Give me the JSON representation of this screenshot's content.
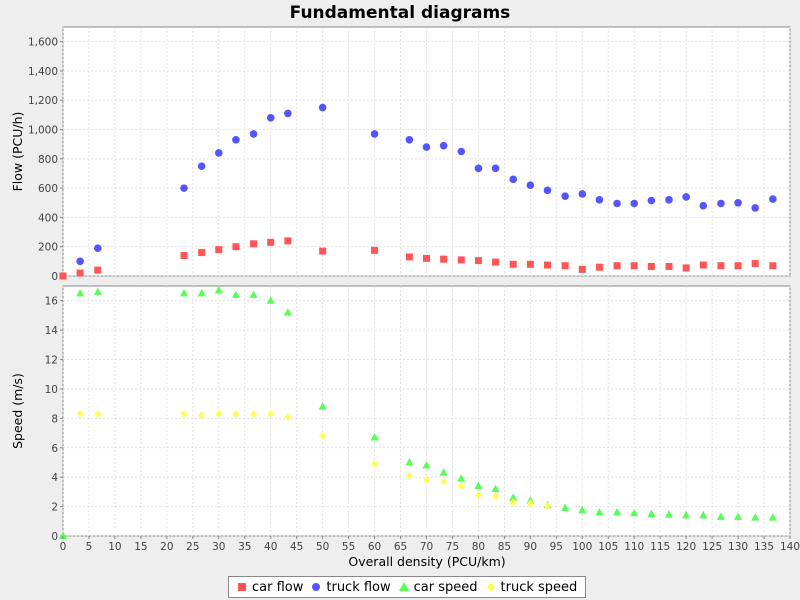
{
  "chart_data": {
    "title": "Fundamental diagrams",
    "xlabel": "Overall density (PCU/km)",
    "xlim": [
      0,
      140
    ],
    "x_ticks": [
      0,
      5,
      10,
      15,
      20,
      25,
      30,
      35,
      40,
      45,
      50,
      55,
      60,
      65,
      70,
      75,
      80,
      85,
      90,
      95,
      100,
      105,
      110,
      115,
      120,
      125,
      130,
      135,
      140
    ],
    "grid": true,
    "legend_position": "bottom",
    "subplots": [
      {
        "type": "scatter",
        "ylabel": "Flow (PCU/h)",
        "ylim": [
          0,
          1700
        ],
        "y_ticks": [
          0,
          200,
          400,
          600,
          800,
          1000,
          1200,
          1400,
          1600
        ],
        "y_tick_labels": [
          "0",
          "200",
          "400",
          "600",
          "800",
          "1,000",
          "1,200",
          "1,400",
          "1,600"
        ],
        "series": [
          {
            "name": "car flow",
            "marker": "square",
            "color": "#ff5555",
            "points": [
              [
                0,
                0
              ],
              [
                3.3,
                20
              ],
              [
                6.7,
                40
              ],
              [
                23.3,
                140
              ],
              [
                26.7,
                160
              ],
              [
                30,
                180
              ],
              [
                33.3,
                200
              ],
              [
                36.7,
                220
              ],
              [
                40,
                230
              ],
              [
                43.3,
                240
              ],
              [
                50,
                170
              ],
              [
                60,
                175
              ],
              [
                66.7,
                130
              ],
              [
                70,
                120
              ],
              [
                73.3,
                115
              ],
              [
                76.7,
                110
              ],
              [
                80,
                105
              ],
              [
                83.3,
                95
              ],
              [
                86.7,
                80
              ],
              [
                90,
                80
              ],
              [
                93.3,
                75
              ],
              [
                96.7,
                70
              ],
              [
                100,
                45
              ],
              [
                103.3,
                60
              ],
              [
                106.7,
                70
              ],
              [
                110,
                70
              ],
              [
                113.3,
                65
              ],
              [
                116.7,
                65
              ],
              [
                120,
                55
              ],
              [
                123.3,
                75
              ],
              [
                126.7,
                70
              ],
              [
                130,
                70
              ],
              [
                133.3,
                85
              ],
              [
                136.7,
                70
              ]
            ]
          },
          {
            "name": "truck flow",
            "marker": "circle",
            "color": "#5555ff",
            "points": [
              [
                3.3,
                100
              ],
              [
                6.7,
                190
              ],
              [
                23.3,
                600
              ],
              [
                26.7,
                750
              ],
              [
                30,
                840
              ],
              [
                33.3,
                930
              ],
              [
                36.7,
                970
              ],
              [
                40,
                1080
              ],
              [
                43.3,
                1110
              ],
              [
                50,
                1150
              ],
              [
                60,
                970
              ],
              [
                66.7,
                930
              ],
              [
                70,
                880
              ],
              [
                73.3,
                890
              ],
              [
                76.7,
                850
              ],
              [
                80,
                735
              ],
              [
                83.3,
                735
              ],
              [
                86.7,
                660
              ],
              [
                90,
                620
              ],
              [
                93.3,
                585
              ],
              [
                96.7,
                545
              ],
              [
                100,
                560
              ],
              [
                103.3,
                520
              ],
              [
                106.7,
                495
              ],
              [
                110,
                495
              ],
              [
                113.3,
                515
              ],
              [
                116.7,
                520
              ],
              [
                120,
                540
              ],
              [
                123.3,
                480
              ],
              [
                126.7,
                495
              ],
              [
                130,
                500
              ],
              [
                133.3,
                465
              ],
              [
                136.7,
                525
              ]
            ]
          }
        ]
      },
      {
        "type": "scatter",
        "ylabel": "Speed (m/s)",
        "ylim": [
          0,
          17
        ],
        "y_ticks": [
          0,
          2,
          4,
          6,
          8,
          10,
          12,
          14,
          16
        ],
        "y_tick_labels": [
          "0",
          "2",
          "4",
          "6",
          "8",
          "10",
          "12",
          "14",
          "16"
        ],
        "series": [
          {
            "name": "car speed",
            "marker": "triangle",
            "color": "#55ff55",
            "points": [
              [
                0,
                0
              ],
              [
                3.3,
                16.5
              ],
              [
                6.7,
                16.6
              ],
              [
                23.3,
                16.5
              ],
              [
                26.7,
                16.5
              ],
              [
                30,
                16.7
              ],
              [
                33.3,
                16.4
              ],
              [
                36.7,
                16.4
              ],
              [
                40,
                16
              ],
              [
                43.3,
                15.2
              ],
              [
                50,
                8.8
              ],
              [
                60,
                6.7
              ],
              [
                66.7,
                5
              ],
              [
                70,
                4.8
              ],
              [
                73.3,
                4.3
              ],
              [
                76.7,
                3.9
              ],
              [
                80,
                3.4
              ],
              [
                83.3,
                3.2
              ],
              [
                86.7,
                2.6
              ],
              [
                90,
                2.4
              ],
              [
                93.3,
                2.1
              ],
              [
                96.7,
                1.9
              ],
              [
                100,
                1.75
              ],
              [
                103.3,
                1.6
              ],
              [
                106.7,
                1.6
              ],
              [
                110,
                1.55
              ],
              [
                113.3,
                1.5
              ],
              [
                116.7,
                1.45
              ],
              [
                120,
                1.4
              ],
              [
                123.3,
                1.4
              ],
              [
                126.7,
                1.3
              ],
              [
                130,
                1.3
              ],
              [
                133.3,
                1.25
              ],
              [
                136.7,
                1.25
              ]
            ]
          },
          {
            "name": "truck speed",
            "marker": "diamond",
            "color": "#ffff55",
            "points": [
              [
                3.3,
                8.3
              ],
              [
                6.7,
                8.3
              ],
              [
                23.3,
                8.3
              ],
              [
                26.7,
                8.2
              ],
              [
                30,
                8.3
              ],
              [
                33.3,
                8.3
              ],
              [
                36.7,
                8.3
              ],
              [
                40,
                8.3
              ],
              [
                43.3,
                8.1
              ],
              [
                50,
                6.8
              ],
              [
                60,
                4.9
              ],
              [
                66.7,
                4.1
              ],
              [
                70,
                3.8
              ],
              [
                73.3,
                3.7
              ],
              [
                76.7,
                3.4
              ],
              [
                80,
                2.8
              ],
              [
                83.3,
                2.7
              ],
              [
                86.7,
                2.3
              ],
              [
                90,
                2.2
              ],
              [
                93.3,
                2.05
              ]
            ]
          }
        ]
      }
    ]
  },
  "legend": [
    {
      "label": "car flow",
      "marker": "square",
      "color": "#ff5555"
    },
    {
      "label": "truck flow",
      "marker": "circle",
      "color": "#5555ff"
    },
    {
      "label": "car speed",
      "marker": "triangle",
      "color": "#55ff55"
    },
    {
      "label": "truck speed",
      "marker": "diamond",
      "color": "#ffff55"
    }
  ]
}
